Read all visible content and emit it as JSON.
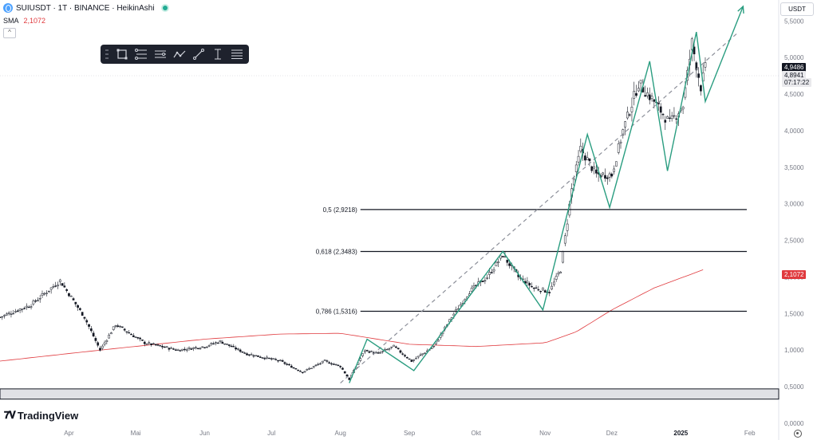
{
  "header": {
    "title": "SUIUSDT · 1T · BINANCE · HeikinAshi",
    "sma_label": "SMA",
    "sma_value": "2,1072"
  },
  "toolbar": {
    "tools": [
      "rectangle-icon",
      "fib-icon",
      "fib-extension-icon",
      "pattern-icon",
      "trendline-icon",
      "measure-icon",
      "parallel-icon"
    ]
  },
  "currency": "USDT",
  "price_tags": {
    "last_price": "4,9486",
    "bid": "4,8941",
    "countdown": "07:17:22",
    "sma": "2,1072"
  },
  "brand": "TradingView",
  "chart_data": {
    "type": "candlestick",
    "style": "HeikinAshi",
    "y_axis": {
      "ylim": [
        0,
        5.7
      ],
      "ticks": [
        0,
        0.5,
        1.0,
        1.5,
        2.0,
        2.5,
        3.0,
        3.5,
        4.0,
        4.5,
        5.0,
        5.5
      ],
      "tick_labels": [
        "0,0000",
        "0,5000",
        "1,0000",
        "1,5000",
        "2,0000",
        "2,5000",
        "3,0000",
        "3,5000",
        "4,0000",
        "4,5000",
        "5,0000",
        "5,5000"
      ]
    },
    "x_axis": {
      "labels": [
        "Apr",
        "Mai",
        "Jun",
        "Jul",
        "Aug",
        "Sep",
        "Okt",
        "Nov",
        "Dez",
        "2025",
        "Feb"
      ]
    },
    "price_keypoints": [
      [
        "2024-03-01",
        1.45
      ],
      [
        "2024-03-15",
        1.62
      ],
      [
        "2024-03-28",
        1.95
      ],
      [
        "2024-04-08",
        1.45
      ],
      [
        "2024-04-15",
        1.0
      ],
      [
        "2024-04-22",
        1.35
      ],
      [
        "2024-05-05",
        1.1
      ],
      [
        "2024-05-20",
        1.0
      ],
      [
        "2024-06-01",
        1.05
      ],
      [
        "2024-06-08",
        1.12
      ],
      [
        "2024-06-20",
        0.95
      ],
      [
        "2024-07-05",
        0.85
      ],
      [
        "2024-07-15",
        0.7
      ],
      [
        "2024-07-25",
        0.85
      ],
      [
        "2024-08-01",
        0.78
      ],
      [
        "2024-08-05",
        0.6
      ],
      [
        "2024-08-12",
        1.0
      ],
      [
        "2024-08-18",
        0.95
      ],
      [
        "2024-08-25",
        1.05
      ],
      [
        "2024-09-02",
        0.85
      ],
      [
        "2024-09-12",
        1.05
      ],
      [
        "2024-09-20",
        1.45
      ],
      [
        "2024-09-28",
        1.8
      ],
      [
        "2024-10-06",
        2.0
      ],
      [
        "2024-10-13",
        2.3
      ],
      [
        "2024-10-20",
        2.0
      ],
      [
        "2024-10-27",
        1.85
      ],
      [
        "2024-11-03",
        1.8
      ],
      [
        "2024-11-08",
        2.1
      ],
      [
        "2024-11-13",
        3.2
      ],
      [
        "2024-11-17",
        3.75
      ],
      [
        "2024-11-24",
        3.4
      ],
      [
        "2024-12-01",
        3.4
      ],
      [
        "2024-12-06",
        4.0
      ],
      [
        "2024-12-13",
        4.65
      ],
      [
        "2024-12-20",
        4.4
      ],
      [
        "2024-12-27",
        4.1
      ],
      [
        "2025-01-02",
        4.35
      ],
      [
        "2025-01-06",
        5.2
      ],
      [
        "2025-01-10",
        4.6
      ],
      [
        "2025-01-12",
        4.85
      ]
    ],
    "sma_keypoints": [
      [
        "2024-03-01",
        0.85
      ],
      [
        "2024-04-15",
        1.0
      ],
      [
        "2024-06-01",
        1.15
      ],
      [
        "2024-07-05",
        1.22
      ],
      [
        "2024-08-01",
        1.23
      ],
      [
        "2024-09-01",
        1.08
      ],
      [
        "2024-10-01",
        1.05
      ],
      [
        "2024-11-01",
        1.1
      ],
      [
        "2024-11-15",
        1.25
      ],
      [
        "2024-12-01",
        1.55
      ],
      [
        "2024-12-20",
        1.85
      ],
      [
        "2025-01-12",
        2.11
      ]
    ],
    "fib_levels": [
      {
        "label": "0,5 (2,9218)",
        "value": 2.9218
      },
      {
        "label": "0,618 (2,3483)",
        "value": 2.3483
      },
      {
        "label": "0,786 (1,5316)",
        "value": 1.5316
      }
    ],
    "support_zone": {
      "from": 0.33,
      "to": 0.47
    },
    "elliott_wave": [
      [
        "2024-08-05",
        0.55
      ],
      [
        "2024-08-13",
        1.15
      ],
      [
        "2024-09-03",
        0.72
      ],
      [
        "2024-10-13",
        2.35
      ],
      [
        "2024-10-31",
        1.55
      ],
      [
        "2024-11-20",
        3.95
      ],
      [
        "2024-11-30",
        2.95
      ],
      [
        "2024-12-18",
        4.95
      ],
      [
        "2024-12-26",
        3.45
      ],
      [
        "2025-01-08",
        5.35
      ],
      [
        "2025-01-12",
        4.4
      ],
      [
        "2025-01-29",
        5.7
      ]
    ],
    "trend_line": [
      [
        "2024-08-01",
        0.55
      ],
      [
        "2025-01-27",
        5.35
      ]
    ],
    "last_price": 4.9486,
    "sma_last": 2.1072
  }
}
